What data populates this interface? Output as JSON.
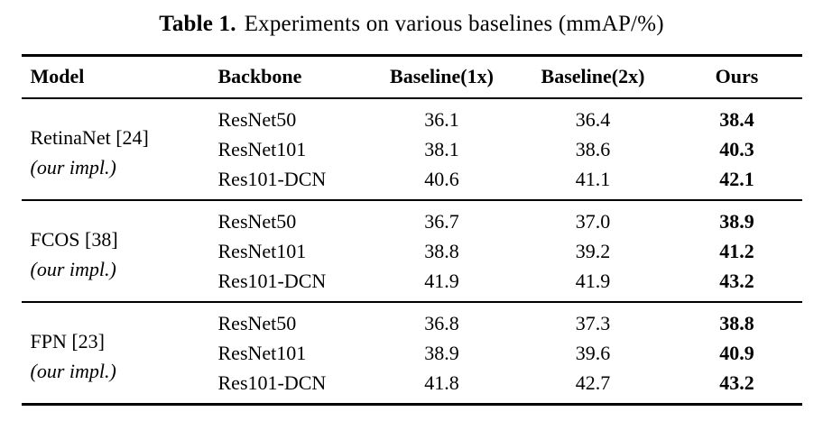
{
  "caption": {
    "label": "Table 1.",
    "text": "Experiments on various baselines (mmAP/%)"
  },
  "table": {
    "headers": [
      "Model",
      "Backbone",
      "Baseline(1x)",
      "Baseline(2x)",
      "Ours"
    ],
    "groups": [
      {
        "model": "RetinaNet [24]",
        "model_note": "(our impl.)",
        "rows": [
          {
            "backbone": "ResNet50",
            "baseline1x": "36.1",
            "baseline2x": "36.4",
            "ours": "38.4"
          },
          {
            "backbone": "ResNet101",
            "baseline1x": "38.1",
            "baseline2x": "38.6",
            "ours": "40.3"
          },
          {
            "backbone": "Res101-DCN",
            "baseline1x": "40.6",
            "baseline2x": "41.1",
            "ours": "42.1"
          }
        ]
      },
      {
        "model": "FCOS [38]",
        "model_note": "(our impl.)",
        "rows": [
          {
            "backbone": "ResNet50",
            "baseline1x": "36.7",
            "baseline2x": "37.0",
            "ours": "38.9"
          },
          {
            "backbone": "ResNet101",
            "baseline1x": "38.8",
            "baseline2x": "39.2",
            "ours": "41.2"
          },
          {
            "backbone": "Res101-DCN",
            "baseline1x": "41.9",
            "baseline2x": "41.9",
            "ours": "43.2"
          }
        ]
      },
      {
        "model": "FPN [23]",
        "model_note": "(our impl.)",
        "rows": [
          {
            "backbone": "ResNet50",
            "baseline1x": "36.8",
            "baseline2x": "37.3",
            "ours": "38.8"
          },
          {
            "backbone": "ResNet101",
            "baseline1x": "38.9",
            "baseline2x": "39.6",
            "ours": "40.9"
          },
          {
            "backbone": "Res101-DCN",
            "baseline1x": "41.8",
            "baseline2x": "42.7",
            "ours": "43.2"
          }
        ]
      }
    ]
  }
}
